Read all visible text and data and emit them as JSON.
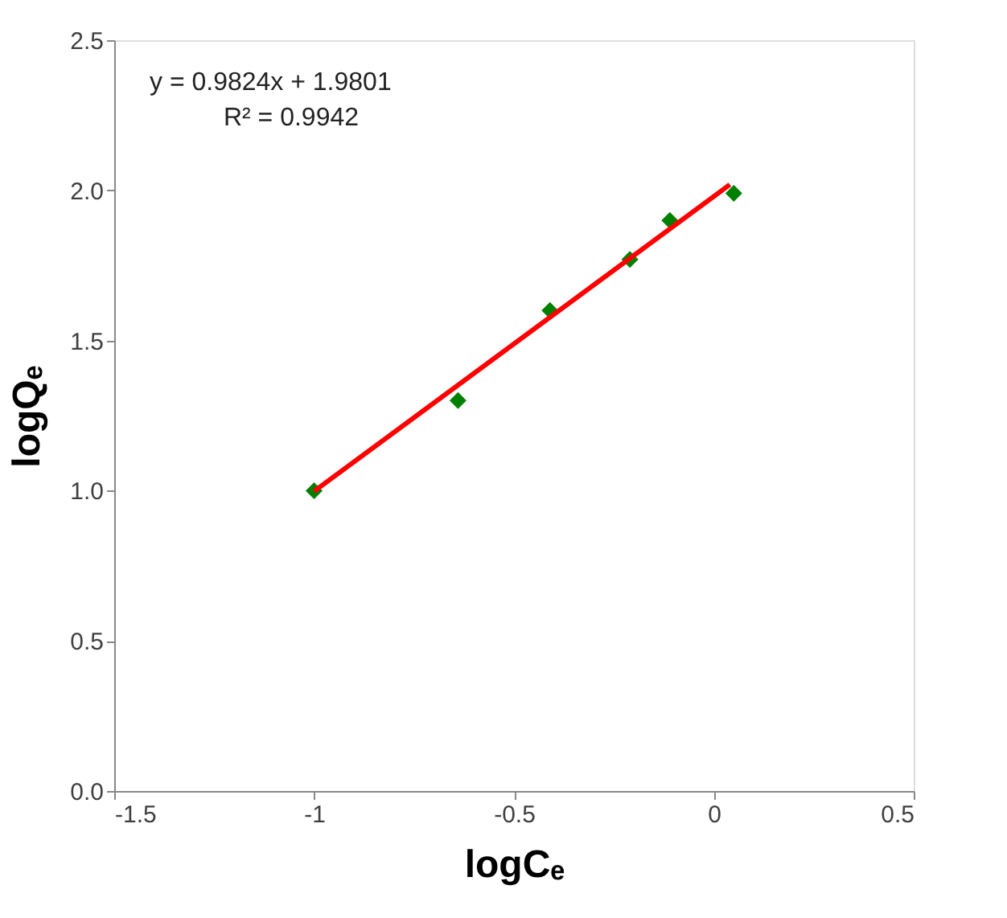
{
  "chart_data": {
    "type": "scatter",
    "xlabel": "logCₑ",
    "ylabel": "logQₑ",
    "xlim": [
      -1.5,
      0.5
    ],
    "xticks": [
      {
        "value": -1.5,
        "label": "-1.5"
      },
      {
        "value": -1,
        "label": "-1"
      },
      {
        "value": -0.5,
        "label": "-0.5"
      },
      {
        "value": 0,
        "label": "0"
      },
      {
        "value": 0.5,
        "label": "0.5"
      }
    ],
    "ylim": [
      0,
      2.5
    ],
    "yticks": [
      {
        "value": 0,
        "label": "0.0"
      },
      {
        "value": 0.5,
        "label": "0.5"
      },
      {
        "value": 1,
        "label": "1.0"
      },
      {
        "value": 1.5,
        "label": "1.5"
      },
      {
        "value": 2,
        "label": "2.0"
      },
      {
        "value": 2.5,
        "label": "2.5"
      }
    ],
    "grid": false,
    "annotations": [
      "y = 0.9824x + 1.9801",
      "R² = 0.9942"
    ],
    "series": [
      {
        "marker": "diamond",
        "color": "#008000",
        "x": [
          -1.0,
          -0.64,
          -0.41,
          -0.21,
          -0.11,
          0.05
        ],
        "values": [
          1.0,
          1.3,
          1.6,
          1.77,
          1.9,
          1.99
        ]
      },
      {
        "type": "line",
        "marker": "none",
        "line_style": "solid",
        "color": "#ff0000",
        "x": [
          -1.0,
          0.04
        ],
        "values": [
          0.998,
          2.019
        ]
      }
    ]
  }
}
